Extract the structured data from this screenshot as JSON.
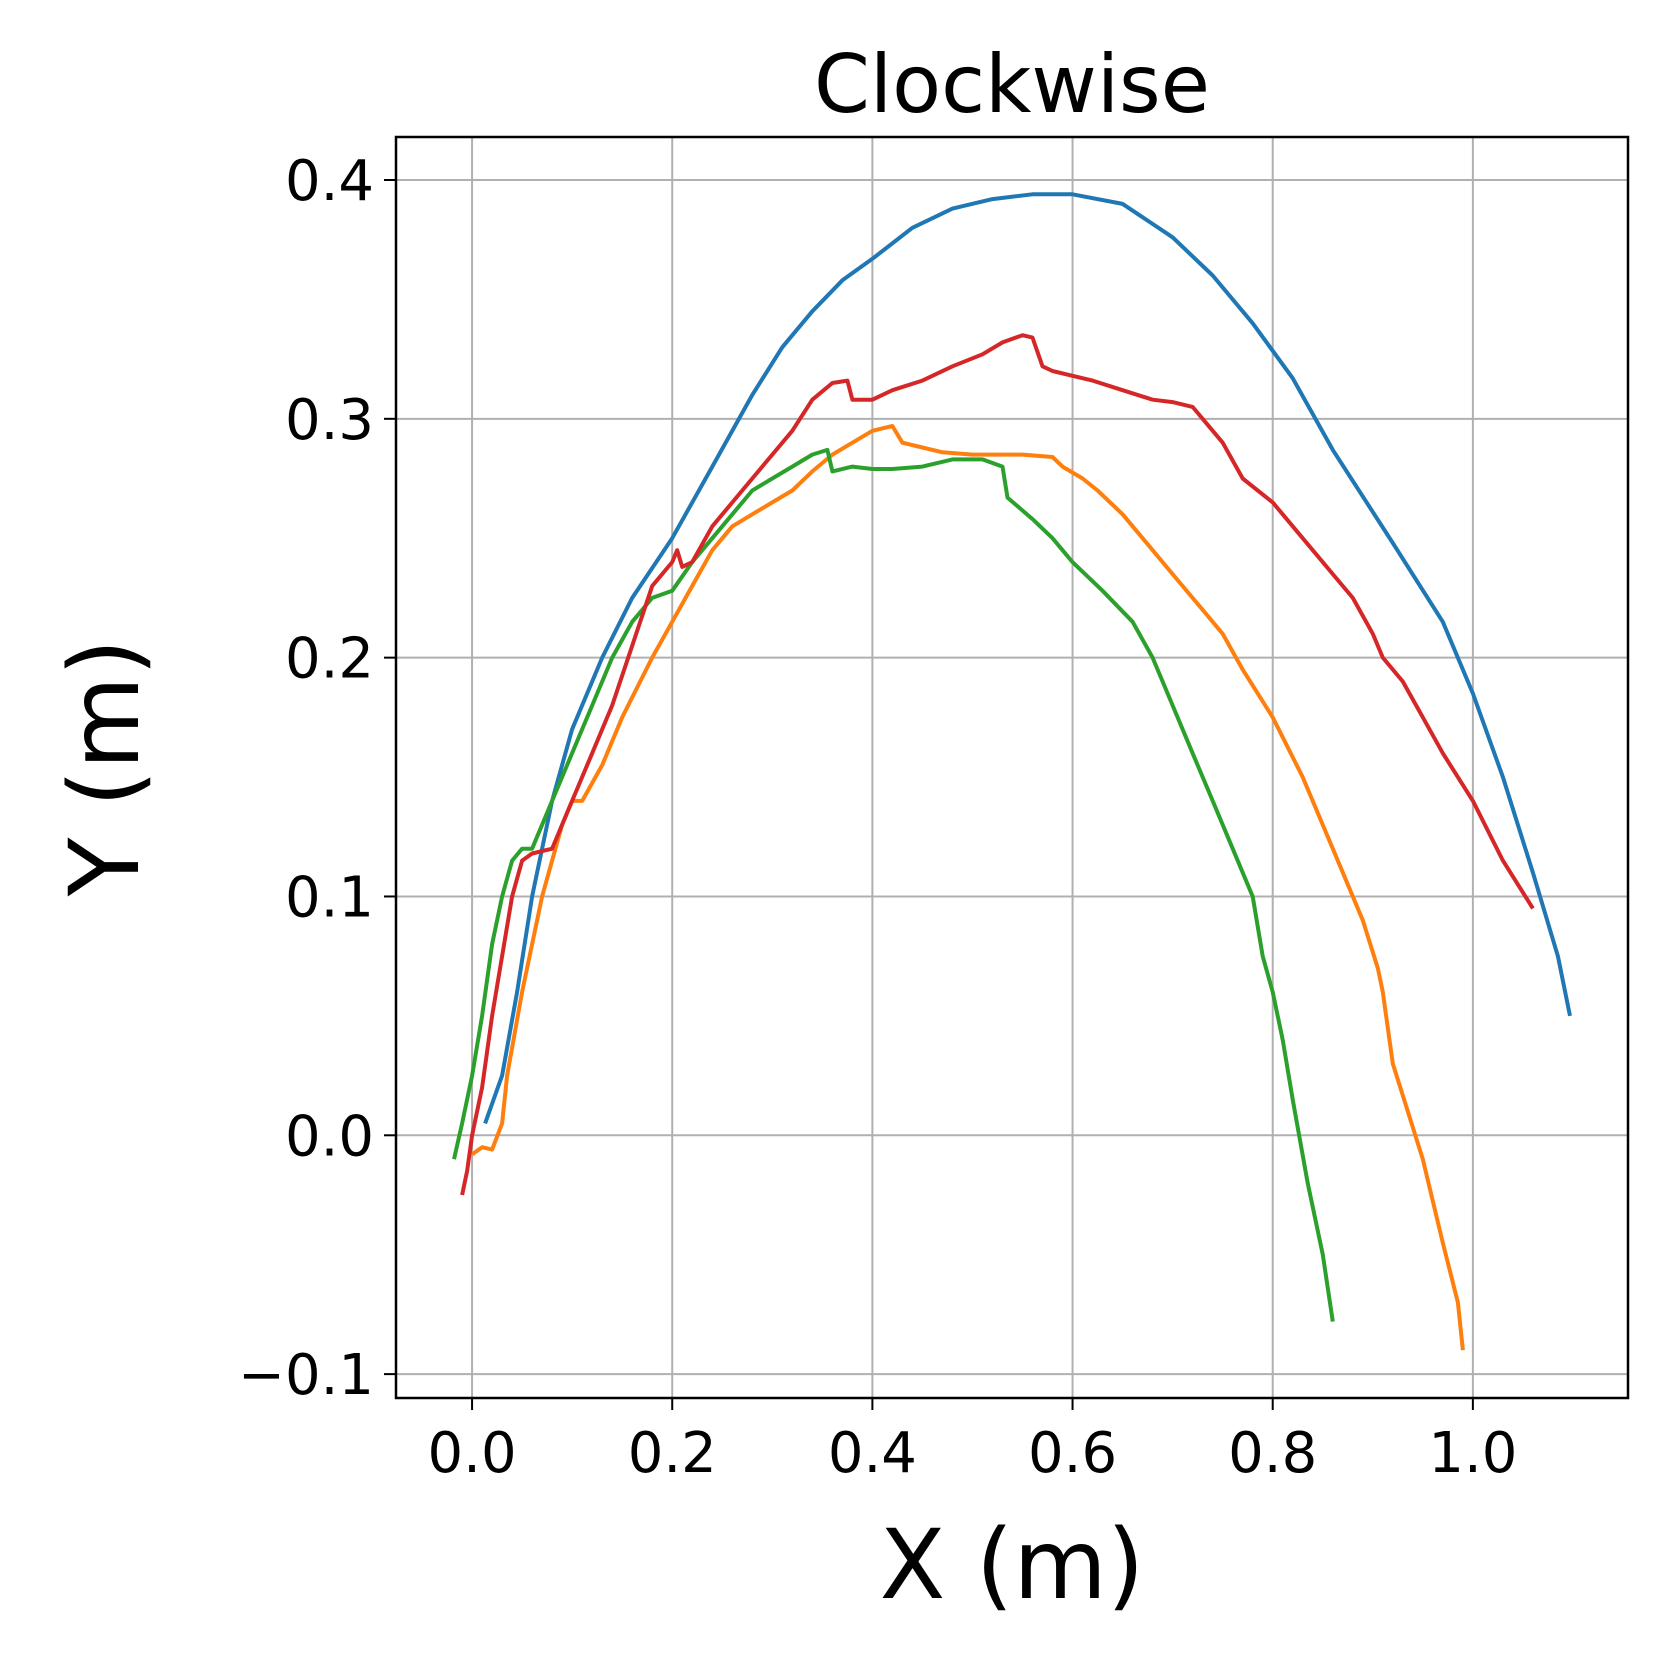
{
  "chart_data": {
    "type": "line",
    "title": "Clockwise",
    "xlabel": "X (m)",
    "ylabel": "Y (m)",
    "xlim": [
      -0.076,
      1.155
    ],
    "ylim": [
      -0.11,
      0.418
    ],
    "xticks": [
      0.0,
      0.2,
      0.4,
      0.6,
      0.8,
      1.0
    ],
    "xtick_labels": [
      "0.0",
      "0.2",
      "0.4",
      "0.6",
      "0.8",
      "1.0"
    ],
    "yticks": [
      -0.1,
      0.0,
      0.1,
      0.2,
      0.3,
      0.4
    ],
    "ytick_labels": [
      "−0.1",
      "0.0",
      "0.1",
      "0.2",
      "0.3",
      "0.4"
    ],
    "grid": true,
    "legend": null,
    "series": [
      {
        "color": "#1f77b4",
        "x": [
          0.013,
          0.03,
          0.045,
          0.06,
          0.08,
          0.1,
          0.13,
          0.16,
          0.2,
          0.24,
          0.28,
          0.31,
          0.34,
          0.37,
          0.4,
          0.44,
          0.48,
          0.52,
          0.56,
          0.6,
          0.65,
          0.7,
          0.74,
          0.78,
          0.82,
          0.86,
          0.92,
          0.97,
          1.0,
          1.03,
          1.06,
          1.085,
          1.097
        ],
        "y": [
          0.005,
          0.025,
          0.06,
          0.1,
          0.14,
          0.17,
          0.2,
          0.225,
          0.25,
          0.28,
          0.31,
          0.33,
          0.345,
          0.358,
          0.367,
          0.38,
          0.388,
          0.392,
          0.394,
          0.394,
          0.39,
          0.376,
          0.36,
          0.34,
          0.317,
          0.287,
          0.248,
          0.215,
          0.185,
          0.15,
          0.11,
          0.075,
          0.05
        ]
      },
      {
        "color": "#ff7f0e",
        "x": [
          0.0,
          0.01,
          0.02,
          0.03,
          0.035,
          0.05,
          0.07,
          0.09,
          0.1,
          0.11,
          0.13,
          0.15,
          0.18,
          0.2,
          0.22,
          0.24,
          0.26,
          0.28,
          0.3,
          0.32,
          0.34,
          0.36,
          0.38,
          0.4,
          0.42,
          0.43,
          0.45,
          0.47,
          0.5,
          0.55,
          0.58,
          0.59,
          0.61,
          0.625,
          0.65,
          0.67,
          0.7,
          0.73,
          0.75,
          0.77,
          0.8,
          0.83,
          0.86,
          0.89,
          0.905,
          0.91,
          0.92,
          0.95,
          0.97,
          0.985,
          0.99
        ],
        "y": [
          -0.008,
          -0.005,
          -0.006,
          0.005,
          0.025,
          0.06,
          0.1,
          0.13,
          0.14,
          0.14,
          0.155,
          0.175,
          0.2,
          0.215,
          0.23,
          0.245,
          0.255,
          0.26,
          0.265,
          0.27,
          0.278,
          0.285,
          0.29,
          0.295,
          0.297,
          0.29,
          0.288,
          0.286,
          0.285,
          0.285,
          0.284,
          0.28,
          0.275,
          0.27,
          0.26,
          0.25,
          0.235,
          0.22,
          0.21,
          0.195,
          0.175,
          0.15,
          0.12,
          0.09,
          0.07,
          0.06,
          0.03,
          -0.01,
          -0.045,
          -0.07,
          -0.09
        ]
      },
      {
        "color": "#2ca02c",
        "x": [
          -0.018,
          -0.01,
          -0.005,
          0.0,
          0.01,
          0.02,
          0.03,
          0.04,
          0.05,
          0.06,
          0.08,
          0.1,
          0.12,
          0.14,
          0.16,
          0.18,
          0.2,
          0.22,
          0.24,
          0.26,
          0.28,
          0.3,
          0.32,
          0.34,
          0.355,
          0.36,
          0.38,
          0.4,
          0.42,
          0.45,
          0.48,
          0.51,
          0.53,
          0.535,
          0.56,
          0.58,
          0.6,
          0.63,
          0.66,
          0.68,
          0.7,
          0.72,
          0.74,
          0.76,
          0.78,
          0.79,
          0.8,
          0.81,
          0.82,
          0.835,
          0.85,
          0.86
        ],
        "y": [
          -0.01,
          0.005,
          0.015,
          0.025,
          0.05,
          0.08,
          0.1,
          0.115,
          0.12,
          0.12,
          0.14,
          0.16,
          0.18,
          0.2,
          0.215,
          0.225,
          0.228,
          0.24,
          0.25,
          0.26,
          0.27,
          0.275,
          0.28,
          0.285,
          0.287,
          0.278,
          0.28,
          0.279,
          0.279,
          0.28,
          0.283,
          0.283,
          0.28,
          0.267,
          0.258,
          0.25,
          0.24,
          0.228,
          0.215,
          0.2,
          0.18,
          0.16,
          0.14,
          0.12,
          0.1,
          0.075,
          0.06,
          0.04,
          0.015,
          -0.02,
          -0.05,
          -0.078
        ]
      },
      {
        "color": "#d62728",
        "x": [
          -0.01,
          -0.005,
          0.0,
          0.01,
          0.02,
          0.03,
          0.04,
          0.05,
          0.06,
          0.08,
          0.1,
          0.12,
          0.14,
          0.16,
          0.18,
          0.2,
          0.205,
          0.21,
          0.22,
          0.24,
          0.26,
          0.28,
          0.3,
          0.32,
          0.34,
          0.36,
          0.375,
          0.38,
          0.4,
          0.42,
          0.45,
          0.48,
          0.51,
          0.53,
          0.55,
          0.56,
          0.57,
          0.58,
          0.6,
          0.62,
          0.65,
          0.68,
          0.7,
          0.72,
          0.75,
          0.77,
          0.8,
          0.83,
          0.86,
          0.88,
          0.9,
          0.91,
          0.93,
          0.95,
          0.97,
          1.0,
          1.03,
          1.06
        ],
        "y": [
          -0.025,
          -0.015,
          0.0,
          0.02,
          0.05,
          0.075,
          0.1,
          0.115,
          0.118,
          0.12,
          0.14,
          0.16,
          0.18,
          0.205,
          0.23,
          0.24,
          0.245,
          0.238,
          0.24,
          0.255,
          0.265,
          0.275,
          0.285,
          0.295,
          0.308,
          0.315,
          0.316,
          0.308,
          0.308,
          0.312,
          0.316,
          0.322,
          0.327,
          0.332,
          0.335,
          0.334,
          0.322,
          0.32,
          0.318,
          0.316,
          0.312,
          0.308,
          0.307,
          0.305,
          0.29,
          0.275,
          0.265,
          0.25,
          0.235,
          0.225,
          0.21,
          0.2,
          0.19,
          0.175,
          0.16,
          0.14,
          0.115,
          0.095
        ]
      }
    ]
  }
}
